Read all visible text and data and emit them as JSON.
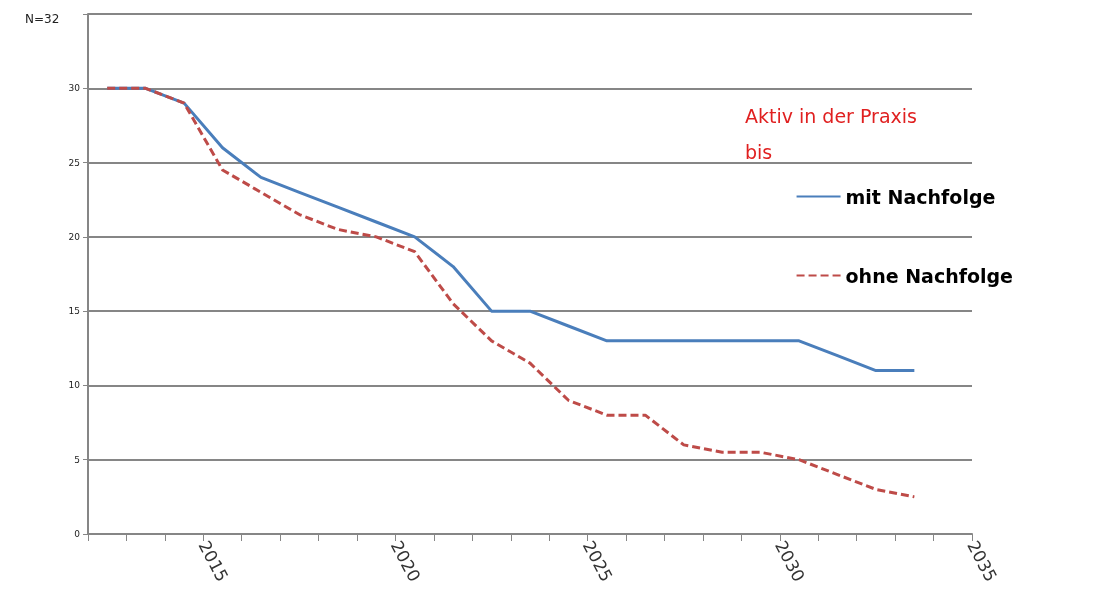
{
  "chart_data": {
    "type": "line",
    "legend_title": "Aktiv in der Praxis bis",
    "annotations": [
      "N=32"
    ],
    "x": [
      2012.5,
      2013.5,
      2014.5,
      2015.5,
      2016.5,
      2017.5,
      2018.5,
      2019.5,
      2020.5,
      2021.5,
      2022.5,
      2023.5,
      2024.5,
      2025.5,
      2026.5,
      2027.5,
      2028.5,
      2029.5,
      2030.5,
      2031.5,
      2032.5,
      2033.5
    ],
    "series": [
      {
        "name": "mit Nachfolge",
        "color": "#4a7ebb",
        "line_style": "solid",
        "values": [
          30,
          30,
          29,
          26,
          24,
          23,
          22,
          21,
          20,
          18,
          15,
          15,
          14,
          13,
          13,
          13,
          13,
          13,
          13,
          12,
          11,
          11
        ]
      },
      {
        "name": "ohne Nachfolge",
        "color": "#be4b48",
        "line_style": "dashed",
        "values": [
          30,
          30,
          29,
          24.5,
          23,
          21.5,
          20.5,
          20,
          19,
          15.5,
          13,
          11.5,
          9,
          8,
          8,
          6,
          5.5,
          5.5,
          5,
          4,
          3,
          2.5
        ]
      }
    ],
    "xlim": [
      2012,
      2035
    ],
    "xticks": [
      {
        "value": 2012,
        "label": null
      },
      {
        "value": 2013,
        "label": null
      },
      {
        "value": 2014,
        "label": null
      },
      2015,
      {
        "value": 2016,
        "label": null
      },
      {
        "value": 2017,
        "label": null
      },
      {
        "value": 2018,
        "label": null
      },
      {
        "value": 2019,
        "label": null
      },
      2020,
      {
        "value": 2021,
        "label": null
      },
      {
        "value": 2022,
        "label": null
      },
      {
        "value": 2023,
        "label": null
      },
      {
        "value": 2024,
        "label": null
      },
      2025,
      {
        "value": 2026,
        "label": null
      },
      {
        "value": 2027,
        "label": null
      },
      {
        "value": 2028,
        "label": null
      },
      {
        "value": 2029,
        "label": null
      },
      2030,
      {
        "value": 2031,
        "label": null
      },
      {
        "value": 2032,
        "label": null
      },
      {
        "value": 2033,
        "label": null
      },
      {
        "value": 2034,
        "label": null
      },
      2035
    ],
    "ylim": [
      0,
      35
    ],
    "yticks": [
      0,
      5,
      10,
      15,
      20,
      25,
      30,
      {
        "value": 35,
        "label": null
      }
    ],
    "grid": "y",
    "legend": "top right",
    "marker": "none"
  }
}
